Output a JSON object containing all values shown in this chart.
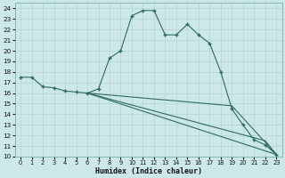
{
  "xlabel": "Humidex (Indice chaleur)",
  "background_color": "#cde8e8",
  "line_color": "#2e6b5e",
  "grid_color": "#b5d5d0",
  "xlim": [
    -0.5,
    23.5
  ],
  "ylim": [
    10,
    24.5
  ],
  "xticks": [
    0,
    1,
    2,
    3,
    4,
    5,
    6,
    7,
    8,
    9,
    10,
    11,
    12,
    13,
    14,
    15,
    16,
    17,
    18,
    19,
    20,
    21,
    22,
    23
  ],
  "yticks": [
    10,
    11,
    12,
    13,
    14,
    15,
    16,
    17,
    18,
    19,
    20,
    21,
    22,
    23,
    24
  ],
  "main_x": [
    0,
    1,
    2,
    3,
    4,
    5,
    6,
    7,
    8,
    9,
    10,
    11,
    12,
    13,
    14,
    15,
    16,
    17,
    18,
    19,
    20,
    21,
    22,
    23
  ],
  "main_y": [
    17.5,
    17.5,
    16.6,
    16.5,
    16.2,
    16.1,
    16.0,
    16.4,
    19.3,
    20.0,
    23.3,
    23.8,
    23.8,
    21.5,
    21.5,
    22.5,
    21.5,
    20.7,
    18.0,
    14.5,
    13.0,
    11.6,
    11.1,
    10.2
  ],
  "line1_x": [
    6,
    23
  ],
  "line1_y": [
    16.0,
    10.2
  ],
  "line2_x": [
    6,
    22,
    23
  ],
  "line2_y": [
    16.0,
    11.5,
    10.2
  ],
  "line3_x": [
    6,
    19,
    23
  ],
  "line3_y": [
    16.0,
    14.8,
    10.2
  ]
}
